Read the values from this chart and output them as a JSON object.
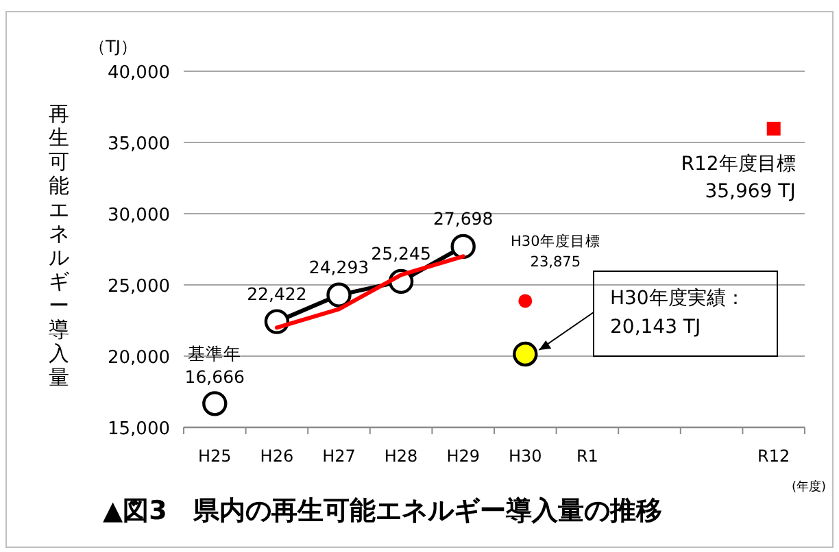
{
  "chart_data": {
    "type": "line",
    "title": "▲図3　県内の再生可能エネルギー導入量の推移",
    "ylabel": "再生可能エネルギー導入量",
    "xlabel": "(年度)",
    "annotations": [
      "（TJ）",
      "H30年度実績：\n20,143 TJ"
    ],
    "categories": [
      "H25",
      "H26",
      "H27",
      "H28",
      "H29",
      "H30",
      "R1",
      null,
      null,
      "R12"
    ],
    "ylim": [
      15000,
      40000
    ],
    "yticks": [
      {
        "value": 15000,
        "label": "15,000"
      },
      {
        "value": 20000,
        "label": "20,000"
      },
      {
        "value": 25000,
        "label": "25,000"
      },
      {
        "value": 30000,
        "label": "30,000"
      },
      {
        "value": 35000,
        "label": "35,000"
      },
      {
        "value": 40000,
        "label": "40,000"
      }
    ],
    "grid": "y",
    "series": [
      {
        "type": "scatter",
        "color": "#000000",
        "marker": "circle",
        "values": [
          16666,
          null,
          null,
          null,
          null,
          null,
          null,
          null,
          null,
          null
        ],
        "value_labels": [
          "基準年\n16,666",
          null,
          null,
          null,
          null,
          null,
          null,
          null,
          null,
          null
        ]
      },
      {
        "color": "#000000",
        "marker": "circle",
        "values": [
          null,
          22422,
          24293,
          25245,
          27698,
          null,
          null,
          null,
          null,
          null
        ],
        "value_labels": [
          null,
          "22,422",
          "24,293",
          "25,245",
          "27,698",
          null,
          null,
          null,
          null,
          null
        ]
      },
      {
        "color": "#ff0000",
        "marker": "none",
        "values": [
          null,
          22000,
          23300,
          25700,
          27000,
          null,
          null,
          null,
          null,
          null
        ]
      },
      {
        "type": "scatter",
        "color": "#ff0000",
        "marker": "circle",
        "values": [
          null,
          null,
          null,
          null,
          null,
          23875,
          null,
          null,
          null,
          null
        ],
        "value_labels": [
          null,
          null,
          null,
          null,
          null,
          "H30年度目標\n23,875",
          null,
          null,
          null,
          null
        ]
      },
      {
        "type": "scatter",
        "color": "#ffff00",
        "marker": "circle",
        "values": [
          null,
          null,
          null,
          null,
          null,
          20143,
          null,
          null,
          null,
          null
        ]
      },
      {
        "type": "scatter",
        "color": "#ff0000",
        "marker": "square",
        "values": [
          null,
          null,
          null,
          null,
          null,
          null,
          null,
          null,
          null,
          35969
        ],
        "value_labels": [
          null,
          null,
          null,
          null,
          null,
          null,
          null,
          null,
          null,
          "R12年度目標\n35,969 TJ"
        ]
      }
    ]
  }
}
